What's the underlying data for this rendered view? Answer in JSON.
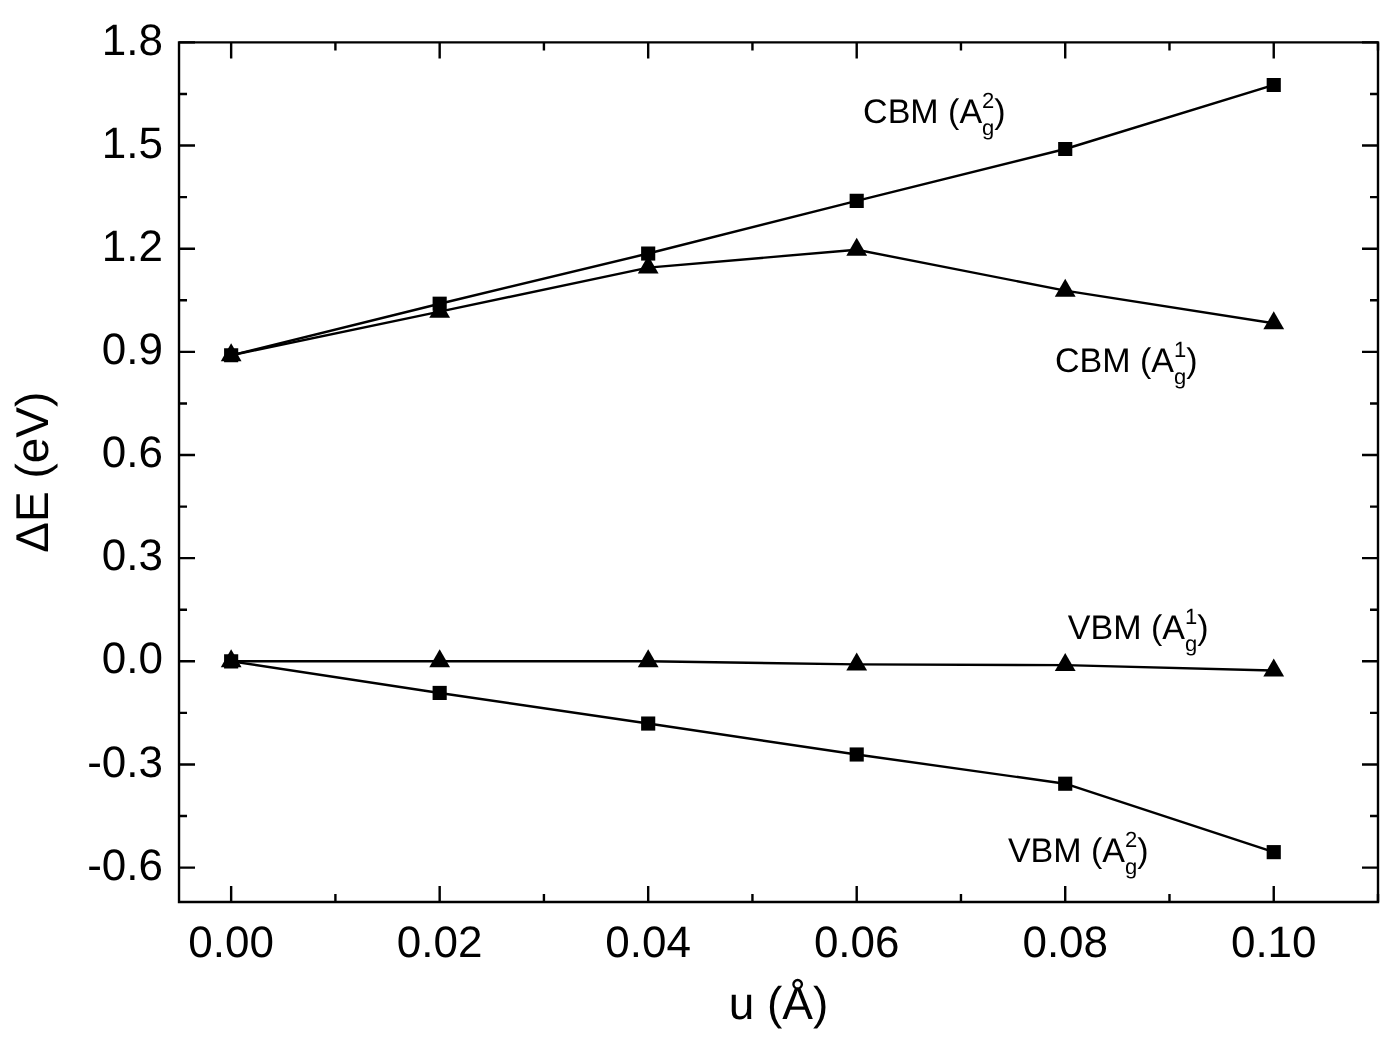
{
  "chart_data": {
    "type": "line",
    "xlabel": "u (Å)",
    "ylabel": "ΔE (eV)",
    "x": [
      0,
      0.02,
      0.04,
      0.06,
      0.08,
      0.1
    ],
    "series": [
      {
        "name": "CBM (A$^{2}$$_{g}$)",
        "color": "#000000",
        "marker": "square",
        "values": [
          0.89,
          1.04,
          1.186,
          1.339,
          1.49,
          1.676
        ]
      },
      {
        "name": "CBM (A$^{1}$$_{g}$)",
        "color": "#000000",
        "marker": "triangle",
        "values": [
          0.89,
          1.017,
          1.145,
          1.197,
          1.078,
          0.983
        ]
      },
      {
        "name": "VBM (A$^{1}$$_{g}$)",
        "color": "#000000",
        "marker": "triangle",
        "values": [
          0,
          0,
          0,
          -0.009,
          -0.011,
          -0.027
        ]
      },
      {
        "name": "VBM (A$^{2}$$_{g}$)",
        "color": "#000000",
        "marker": "square",
        "values": [
          0,
          -0.092,
          -0.181,
          -0.271,
          -0.356,
          -0.555
        ]
      }
    ],
    "xlim": [
      -0.005,
      0.11
    ],
    "xticks": [
      {
        "value": 0,
        "label": "0.00"
      },
      {
        "value": 0.01,
        "label": null
      },
      {
        "value": 0.02,
        "label": "0.02"
      },
      {
        "value": 0.03,
        "label": null
      },
      {
        "value": 0.04,
        "label": "0.04"
      },
      {
        "value": 0.05,
        "label": null
      },
      {
        "value": 0.06,
        "label": "0.06"
      },
      {
        "value": 0.07,
        "label": null
      },
      {
        "value": 0.08,
        "label": "0.08"
      },
      {
        "value": 0.09,
        "label": null
      },
      {
        "value": 0.1,
        "label": "0.10"
      },
      {
        "value": 0.11,
        "label": null
      }
    ],
    "ylim": [
      -0.7,
      1.8
    ],
    "yticks": [
      {
        "value": -0.6,
        "label": "-0.6"
      },
      {
        "value": -0.45,
        "label": null
      },
      {
        "value": -0.3,
        "label": "-0.3"
      },
      {
        "value": -0.15,
        "label": null
      },
      {
        "value": 0,
        "label": "0.0"
      },
      {
        "value": 0.15,
        "label": null
      },
      {
        "value": 0.3,
        "label": "0.3"
      },
      {
        "value": 0.45,
        "label": null
      },
      {
        "value": 0.6,
        "label": "0.6"
      },
      {
        "value": 0.75,
        "label": null
      },
      {
        "value": 0.9,
        "label": "0.9"
      },
      {
        "value": 1.05,
        "label": null
      },
      {
        "value": 1.2,
        "label": "1.2"
      },
      {
        "value": 1.35,
        "label": null
      },
      {
        "value": 1.5,
        "label": "1.5"
      },
      {
        "value": 1.65,
        "label": null
      },
      {
        "value": 1.8,
        "label": "1.8"
      }
    ],
    "grid": false,
    "line_style": "solid"
  }
}
